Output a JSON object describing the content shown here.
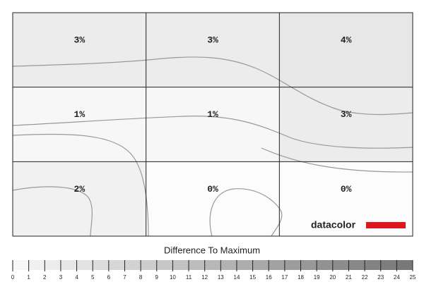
{
  "chart_data": {
    "type": "heatmap",
    "values": [
      [
        3,
        3,
        4
      ],
      [
        1,
        1,
        3
      ],
      [
        2,
        0,
        0
      ]
    ],
    "value_labels": [
      [
        "3%",
        "3%",
        "4%"
      ],
      [
        "1%",
        "1%",
        "3%"
      ],
      [
        "2%",
        "0%",
        "0%"
      ]
    ],
    "colorbar": {
      "title": "Difference To Maximum",
      "lim": [
        0,
        25
      ],
      "ticks": [
        0,
        1,
        2,
        3,
        4,
        5,
        6,
        7,
        8,
        9,
        10,
        11,
        12,
        13,
        14,
        15,
        16,
        17,
        18,
        19,
        20,
        21,
        22,
        23,
        24,
        25
      ]
    },
    "brand": "datacolor"
  }
}
